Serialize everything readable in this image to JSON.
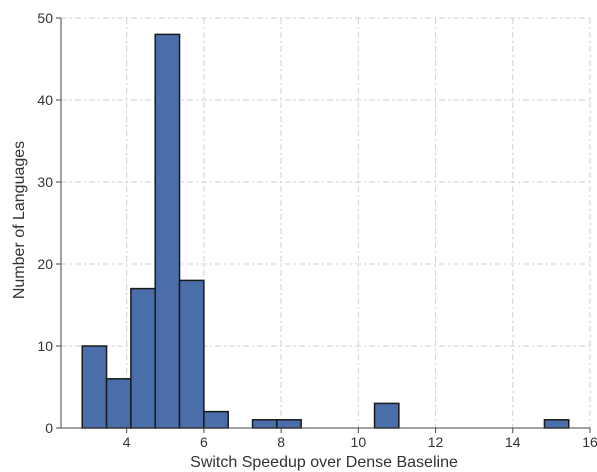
{
  "chart_data": {
    "type": "bar",
    "title": "",
    "xlabel": "Switch Speedup over Dense Baseline",
    "ylabel": "Number of Languages",
    "xlim": [
      2.3,
      16.0
    ],
    "ylim": [
      0,
      50
    ],
    "xticks": [
      4,
      6,
      8,
      10,
      12,
      14,
      16
    ],
    "yticks": [
      0,
      10,
      20,
      30,
      40,
      50
    ],
    "grid": true,
    "bar_color": "#4a6ea9",
    "bin_width": 0.63,
    "bins": [
      {
        "x0": 2.85,
        "value": 10
      },
      {
        "x0": 3.48,
        "value": 6
      },
      {
        "x0": 4.11,
        "value": 17
      },
      {
        "x0": 4.74,
        "value": 48
      },
      {
        "x0": 5.37,
        "value": 18
      },
      {
        "x0": 6.0,
        "value": 2
      },
      {
        "x0": 7.26,
        "value": 1
      },
      {
        "x0": 7.89,
        "value": 1
      },
      {
        "x0": 10.42,
        "value": 3
      },
      {
        "x0": 14.82,
        "value": 1
      }
    ]
  }
}
